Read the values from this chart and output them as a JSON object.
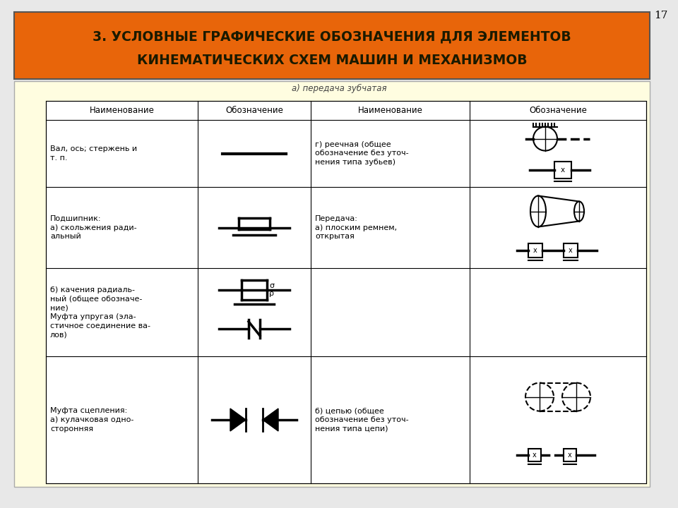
{
  "title_line1": "3. УСЛОВНЫЕ ГРАФИЧЕСКИЕ ОБОЗНАЧЕНИЯ ДЛЯ ЭЛЕМЕНТОВ",
  "title_line2": "КИНЕМАТИЧЕСКИХ СХЕМ МАШИН И МЕХАНИЗМОВ",
  "title_bg_color": "#E8650A",
  "title_text_color": "#1a1a00",
  "page_bg_color": "#e8e8e8",
  "table_bg_color": "#fffde0",
  "page_number": "17",
  "col_headers": [
    "Наименование",
    "Обозначение",
    "Наименование",
    "Обозначение"
  ]
}
